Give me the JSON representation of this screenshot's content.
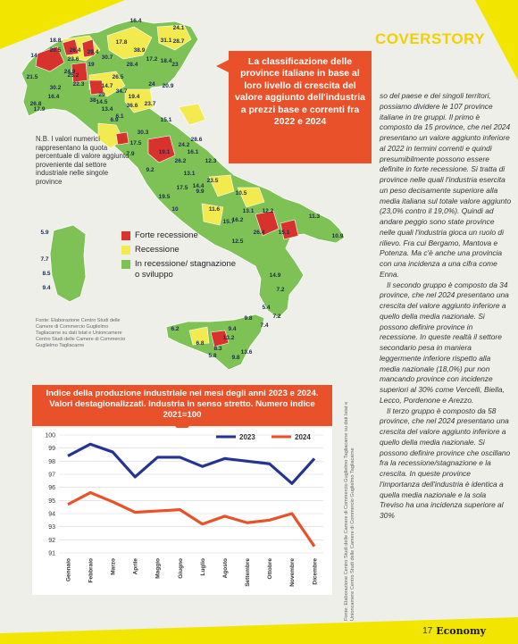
{
  "section": "COVERSTORY",
  "headline": "La classificazione delle province italiane in base al loro livello di crescita del valore aggiunto dell'industria a prezzi base e correnti fra 2022 e 2024",
  "nb_note": "N.B. I valori numerici rappresentano la quota percentuale di valore aggiunto proveniente dal settore industriale nelle singole province",
  "legend": [
    {
      "label": "Forte recessione",
      "color": "#d8322c"
    },
    {
      "label": "Recessione",
      "color": "#f3ea50"
    },
    {
      "label": "In recessione/ stagnazione o sviluppo",
      "color": "#7ec256"
    }
  ],
  "map_source": "Fonte: Elaborazione Centro Studi delle Camere di Commercio Guglielmo Tagliacarne su dati Istat e Unioncamere Centro Studi delle Camere di Commercio Guglielmo Tagliacarne",
  "map_labels": [
    "16.4",
    "24.1",
    "31.1",
    "28.7",
    "18.8",
    "17.8",
    "38.9",
    "30.7",
    "20.5",
    "26.4",
    "17.2",
    "18.4",
    "21.5",
    "26.8",
    "14",
    "29.4",
    "23.6",
    "24.9",
    "19",
    "28.4",
    "23",
    "25.2",
    "26.5",
    "24",
    "20.9",
    "14.7",
    "22.3",
    "30.2",
    "14.5",
    "17.9",
    "6.1",
    "16.4",
    "34.7",
    "29",
    "19.4",
    "38",
    "36.6",
    "23.7",
    "13.4",
    "30.3",
    "17.5",
    "6.9",
    "7.9",
    "9.2",
    "15.1",
    "28.6",
    "24.2",
    "19.1",
    "16.1",
    "26.2",
    "12.3",
    "13.1",
    "9.9",
    "17.5",
    "19.5",
    "10",
    "14.4",
    "23.5",
    "11.6",
    "15.7",
    "10.5",
    "13.1",
    "12.2",
    "16.2",
    "26.4",
    "15.1",
    "11.3",
    "12.5",
    "10.9",
    "5.9",
    "7.7",
    "8.5",
    "9.4",
    "14.9",
    "7.2",
    "5.4",
    "7.2",
    "9.8",
    "7.4",
    "9.4",
    "6.2",
    "6.8",
    "13.2",
    "8.3",
    "9.8",
    "5.8",
    "13.6"
  ],
  "article": [
    "so del paese e dei singoli territori, possiamo dividere le 107 province italiane in tre gruppi. Il primo è composto da 15 province, che nel 2024 presentano un valore aggiunto inferiore al 2022 in termini correnti e quindi presumibilmente possono essere definite in forte recessione. Si tratta di province nelle quali l'industria esercita un peso decisamente superiore alla media italiana sul totale valore aggiunto (23,0% contro il 19,0%). Quindi ad andare peggio sono state province nelle quali l'industria gioca un ruolo di rilievo. Fra cui Bergamo, Mantova e Potenza. Ma c'è anche una provincia con una incidenza a una cifra come Enna.",
    "Il secondo gruppo è composto da 34 province, che nel 2024 presentano una crescita del valore aggiunto inferiore a quello della media nazionale. Si possono definire province in recessione. In queste realtà il settore secondario pesa in maniera leggermente inferiore rispetto alla media nazionale (18,0%) pur non mancando province con incidenze superiori al 30% come Vercelli, Biella, Lecco, Pordenone e Arezzo.",
    "Il terzo gruppo è composto da 58 province, che nel 2024 presentano una crescita del valore aggiunto inferiore a quello della media nazionale. Si possono definire province che oscillano fra la recessione/stagnazione e la crescita. In queste province l'importanza dell'industria è identica a quella media nazionale e la sola Treviso ha una incidenza superiore al 30%"
  ],
  "chart_source": "Fonte: Elaborazione Centro Studi delle Camere di Commercio Guglielmo Tagliacarne su dati Istat e Unioncamere Centro Studi delle Camere di Commercio Guglielmo Tagliacarne",
  "footer": {
    "page": "17",
    "brand": "Economy"
  },
  "chart_data": {
    "type": "line",
    "title": "Indice della produzione industriale nei mesi degli anni 2023 e 2024. Valori destagionalizzati. Industria in senso stretto. Numero indice 2021=100",
    "categories": [
      "Gennaio",
      "Febbraio",
      "Marzo",
      "Aprile",
      "Maggio",
      "Giugno",
      "Luglio",
      "Agosto",
      "Settembre",
      "Ottobre",
      "Novembre",
      "Dicembre"
    ],
    "series": [
      {
        "name": "2023",
        "color": "#25358f",
        "values": [
          98.4,
          99.3,
          98.7,
          96.8,
          98.3,
          98.3,
          97.6,
          98.2,
          98.0,
          97.8,
          96.3,
          98.2
        ]
      },
      {
        "name": "2024",
        "color": "#e8512a",
        "values": [
          94.7,
          95.6,
          94.9,
          94.1,
          94.2,
          94.3,
          93.2,
          93.8,
          93.3,
          93.5,
          94.0,
          91.5
        ]
      }
    ],
    "ylim": [
      91,
      100
    ],
    "yticks": [
      91,
      92,
      93,
      94,
      95,
      96,
      97,
      98,
      99,
      100
    ],
    "grid": true,
    "legend_position": "top"
  }
}
